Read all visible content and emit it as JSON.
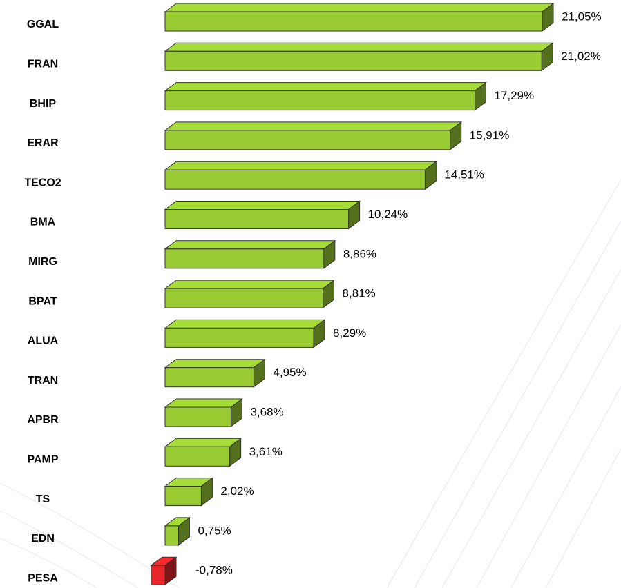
{
  "chart_data": {
    "type": "bar3d_horizontal",
    "categories": [
      "GGAL",
      "FRAN",
      "BHIP",
      "ERAR",
      "TECO2",
      "BMA",
      "MIRG",
      "BPAT",
      "ALUA",
      "TRAN",
      "APBR",
      "PAMP",
      "TS",
      "EDN",
      "PESA"
    ],
    "values": [
      21.05,
      21.02,
      17.29,
      15.91,
      14.51,
      10.24,
      8.86,
      8.81,
      8.29,
      4.95,
      3.68,
      3.61,
      2.02,
      0.75,
      -0.78
    ],
    "value_labels": [
      "21,05%",
      "21,02%",
      "17,29%",
      "15,91%",
      "14,51%",
      "10,24%",
      "8,86%",
      "8,81%",
      "8,29%",
      "4,95%",
      "3,68%",
      "3,61%",
      "2,02%",
      "0,75%",
      "-0,78%"
    ],
    "color": "#99cc33",
    "negative_color": "#e8262a"
  }
}
